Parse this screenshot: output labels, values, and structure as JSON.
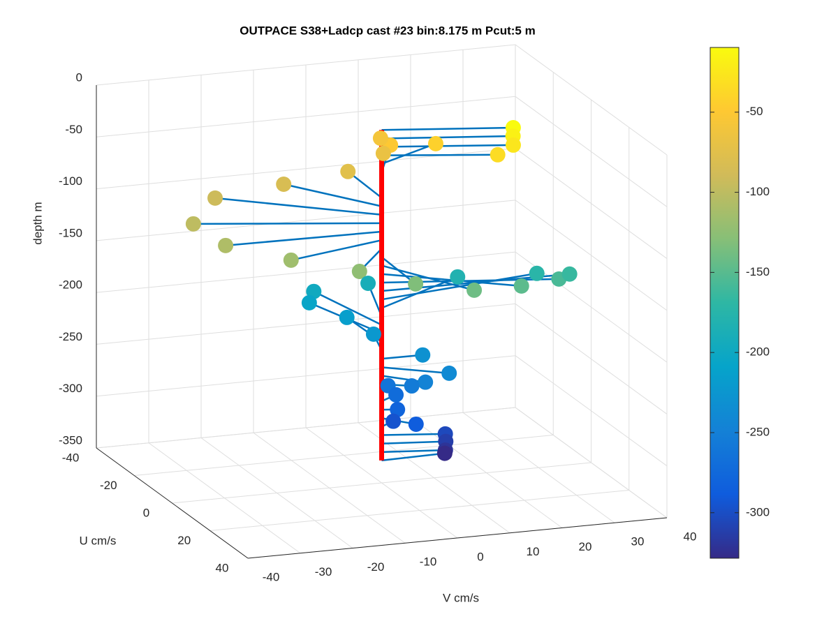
{
  "chart_data": {
    "type": "scatter3",
    "title": "OUTPACE S38+Ladcp cast #23 bin:8.175 m  Pcut:5 m",
    "xlabel": "U cm/s",
    "ylabel": "V cm/s",
    "zlabel": "depth m",
    "x": [
      6.7,
      6.6,
      7.0,
      6.8,
      -9.6,
      -16.9,
      -27.4,
      -22.9,
      -18.9,
      -20.2,
      -21.0,
      -11.2,
      -0.8,
      7.2,
      13.2,
      19.3,
      21.5,
      16.3,
      8.7,
      0.8,
      -7.1,
      -15.2,
      -22.1,
      -25.6,
      -24.1,
      -17.8,
      -10.9,
      0.1,
      8.0,
      6.8,
      2.9,
      -4.1,
      -3.2,
      0.9,
      6.0,
      -2.7,
      3.2,
      2.6,
      2.7,
      -0.7
    ],
    "y": [
      22.7,
      22.7,
      22.6,
      19.7,
      13.8,
      7.8,
      9.7,
      8.6,
      0.4,
      -11.4,
      -24.2,
      -31.9,
      -29.5,
      -19.9,
      -9.0,
      -0.5,
      9.9,
      20.8,
      30.7,
      35.6,
      32.2,
      20.0,
      5.4,
      -3.7,
      -5.1,
      -0.2,
      2.4,
      7.8,
      10.0,
      5.9,
      4.7,
      2.7,
      3.9,
      2.7,
      4.4,
      3.2,
      11.0,
      11.3,
      11.2,
      12.3
    ],
    "z": [
      -9.6,
      -17.8,
      -25.9,
      -34.1,
      -42.3,
      -50.5,
      -58.7,
      -66.8,
      -75.0,
      -83.2,
      -91.4,
      -99.5,
      -107.7,
      -115.9,
      -124.1,
      -132.2,
      -140.4,
      -148.6,
      -156.8,
      -164.9,
      -173.1,
      -181.3,
      -189.5,
      -197.6,
      -205.8,
      -214.0,
      -222.2,
      -230.3,
      -238.5,
      -246.7,
      -254.9,
      -263.0,
      -271.2,
      -279.4,
      -287.6,
      -295.7,
      -303.9,
      -312.1,
      -320.3,
      -328.4
    ],
    "xlim": [
      -40,
      40
    ],
    "xticks": [
      -40,
      -20,
      0,
      20,
      40
    ],
    "ylim": [
      -40,
      40
    ],
    "yticks": [
      -40,
      -30,
      -20,
      -10,
      0,
      10,
      20,
      30,
      40
    ],
    "zlim": [
      -350,
      0
    ],
    "zticks": [
      -350,
      -300,
      -250,
      -200,
      -150,
      -100,
      -50,
      0
    ],
    "grid": true,
    "stem_color": "#0072bd",
    "profile_color": "#ff0000",
    "colorbar": {
      "lim": [
        -328.4,
        -9.6
      ],
      "ticks": [
        -300,
        -250,
        -200,
        -150,
        -100,
        -50
      ],
      "colormap": [
        "#352a87",
        "#0f5cdd",
        "#1481d6",
        "#06a4ca",
        "#2eb7a4",
        "#87bf77",
        "#d1bb59",
        "#fec832",
        "#f9fb0e"
      ]
    }
  }
}
